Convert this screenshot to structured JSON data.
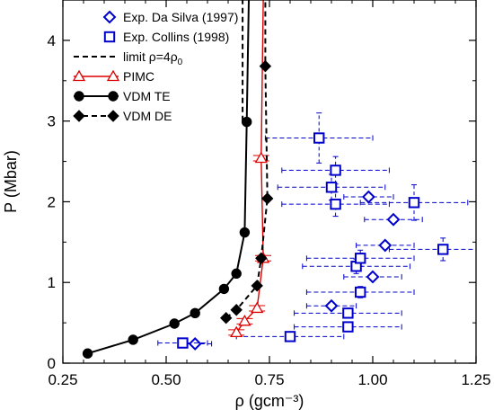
{
  "chart_data": {
    "type": "scatter",
    "xlabel": "ρ (gcm⁻³)",
    "ylabel": "P (Mbar)",
    "xlim": [
      0.25,
      1.25
    ],
    "ylim": [
      0,
      4.5
    ],
    "x_ticks": [
      0.25,
      0.5,
      0.75,
      1.0,
      1.25
    ],
    "x_tick_labels": [
      "0.25",
      "0.50",
      "0.75",
      "1.00",
      "1.25"
    ],
    "y_ticks": [
      0,
      1,
      2,
      3,
      4
    ],
    "y_tick_labels": [
      "0",
      "1",
      "2",
      "3",
      "4"
    ],
    "grid": false,
    "legend_placement": "top-left",
    "legend": [
      {
        "series": "silva",
        "label": "Exp. Da Silva (1997)"
      },
      {
        "series": "collins",
        "label": "Exp. Collins (1998)"
      },
      {
        "series": "limit",
        "label_prefix": "limit ρ=4ρ",
        "label_sub": "0"
      },
      {
        "series": "pimc",
        "label": "PIMC"
      },
      {
        "series": "vdmte",
        "label": "VDM TE"
      },
      {
        "series": "vdmde",
        "label": "VDM DE"
      }
    ],
    "series": [
      {
        "key": "silva",
        "color": "#0000cc",
        "marker": "diamond",
        "style": "errorbars",
        "points": [
          {
            "x": 0.57,
            "y": 0.24,
            "xerr": 0.04
          },
          {
            "x": 0.9,
            "y": 0.71,
            "xerr": 0.06
          },
          {
            "x": 1.0,
            "y": 1.07,
            "xerr": 0.07
          },
          {
            "x": 1.03,
            "y": 1.46,
            "xerr": 0.07
          },
          {
            "x": 1.05,
            "y": 1.78,
            "xerr": 0.07
          },
          {
            "x": 0.99,
            "y": 2.06,
            "xerr": 0.06
          }
        ]
      },
      {
        "key": "collins",
        "color": "#0000cc",
        "marker": "square",
        "style": "errorbars",
        "points": [
          {
            "x": 0.54,
            "y": 0.25,
            "xerr": 0.06,
            "yerr": 0.02
          },
          {
            "x": 0.8,
            "y": 0.33,
            "xerr": 0.13,
            "yerr": 0.03
          },
          {
            "x": 0.94,
            "y": 0.45,
            "xerr": 0.13,
            "yerr": 0.04
          },
          {
            "x": 0.94,
            "y": 0.62,
            "xerr": 0.13,
            "yerr": 0.05
          },
          {
            "x": 0.97,
            "y": 0.88,
            "xerr": 0.13,
            "yerr": 0.07
          },
          {
            "x": 0.96,
            "y": 1.2,
            "xerr": 0.13,
            "yerr": 0.09
          },
          {
            "x": 0.97,
            "y": 1.3,
            "xerr": 0.13,
            "yerr": 0.1
          },
          {
            "x": 1.17,
            "y": 1.41,
            "xerr": 0.13,
            "yerr": 0.14
          },
          {
            "x": 0.91,
            "y": 1.97,
            "xerr": 0.13,
            "yerr": 0.15
          },
          {
            "x": 1.1,
            "y": 1.99,
            "xerr": 0.13,
            "yerr": 0.22
          },
          {
            "x": 0.9,
            "y": 2.18,
            "xerr": 0.13,
            "yerr": 0.16
          },
          {
            "x": 0.91,
            "y": 2.39,
            "xerr": 0.13,
            "yerr": 0.17
          },
          {
            "x": 0.87,
            "y": 2.79,
            "xerr": 0.13,
            "yerr": 0.31
          }
        ]
      },
      {
        "key": "limit",
        "color": "#000000",
        "style": "dashed-line",
        "points": [
          {
            "x": 0.685,
            "y": 3.0
          },
          {
            "x": 0.685,
            "y": 4.5
          }
        ]
      },
      {
        "key": "pimc",
        "color": "#dd0000",
        "marker": "triangle",
        "style": "line",
        "points": [
          {
            "x": 0.67,
            "y": 0.38
          },
          {
            "x": 0.69,
            "y": 0.52
          },
          {
            "x": 0.72,
            "y": 0.68
          },
          {
            "x": 0.735,
            "y": 1.3
          },
          {
            "x": 0.73,
            "y": 2.54
          },
          {
            "x": 0.735,
            "y": 4.5
          }
        ]
      },
      {
        "key": "vdmte",
        "color": "#000000",
        "marker": "circle",
        "style": "line",
        "points": [
          {
            "x": 0.31,
            "y": 0.12
          },
          {
            "x": 0.42,
            "y": 0.29
          },
          {
            "x": 0.52,
            "y": 0.49
          },
          {
            "x": 0.57,
            "y": 0.62
          },
          {
            "x": 0.64,
            "y": 0.92
          },
          {
            "x": 0.67,
            "y": 1.11
          },
          {
            "x": 0.69,
            "y": 1.62
          },
          {
            "x": 0.695,
            "y": 2.99
          },
          {
            "x": 0.7,
            "y": 4.5
          }
        ]
      },
      {
        "key": "vdmde",
        "color": "#000000",
        "marker": "diamond-filled",
        "style": "dashed-line",
        "points": [
          {
            "x": 0.645,
            "y": 0.56
          },
          {
            "x": 0.67,
            "y": 0.66
          },
          {
            "x": 0.72,
            "y": 0.96
          },
          {
            "x": 0.73,
            "y": 1.3
          },
          {
            "x": 0.745,
            "y": 2.04
          },
          {
            "x": 0.74,
            "y": 3.68
          },
          {
            "x": 0.74,
            "y": 4.5
          }
        ]
      }
    ]
  }
}
